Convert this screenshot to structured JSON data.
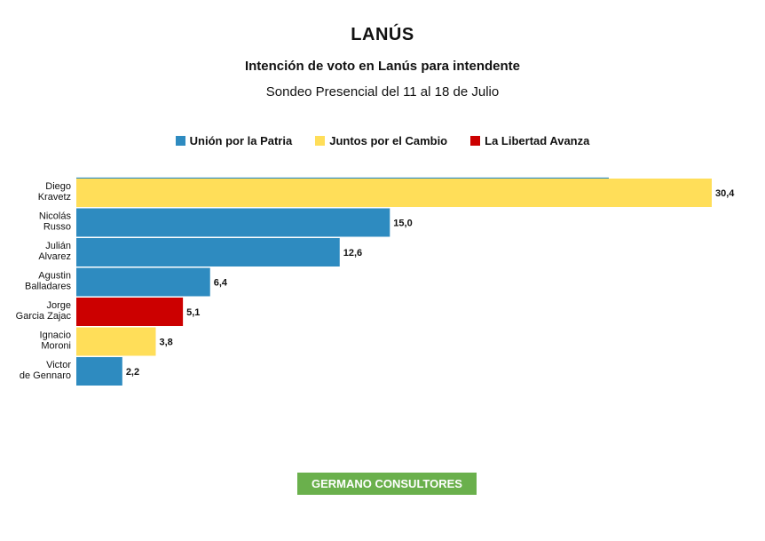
{
  "chart_data": {
    "type": "bar",
    "orientation": "horizontal",
    "title": "LANÚS",
    "subtitle": "Intención de voto en Lanús para intendente",
    "subtitle2": "Sondeo Presencial del 11 al 18 de Julio",
    "legend": [
      {
        "name": "Unión por la Patria",
        "color": "#2e8bc0"
      },
      {
        "name": "Juntos por el Cambio",
        "color": "#ffde59"
      },
      {
        "name": "La Libertad Avanza",
        "color": "#cc0000"
      }
    ],
    "legend_position": "top",
    "categories": [
      [
        "Diego",
        "Kravetz"
      ],
      [
        "Nicolás",
        "Russo"
      ],
      [
        "Julián",
        "Alvarez"
      ],
      [
        "Agustin",
        "Balladares"
      ],
      [
        "Jorge",
        "Garcia Zajac"
      ],
      [
        "Ignacio",
        "Moroni"
      ],
      [
        "Victor",
        "de Gennaro"
      ]
    ],
    "values": [
      30.4,
      15.0,
      12.6,
      6.4,
      5.1,
      3.8,
      2.2
    ],
    "value_labels": [
      "30,4",
      "15,0",
      "12,6",
      "6,4",
      "5,1",
      "3,8",
      "2,2"
    ],
    "series_index": [
      1,
      0,
      0,
      0,
      2,
      1,
      0
    ],
    "xlim": [
      0,
      30.4
    ],
    "grid": false
  },
  "source": "GERMANO CONSULTORES"
}
